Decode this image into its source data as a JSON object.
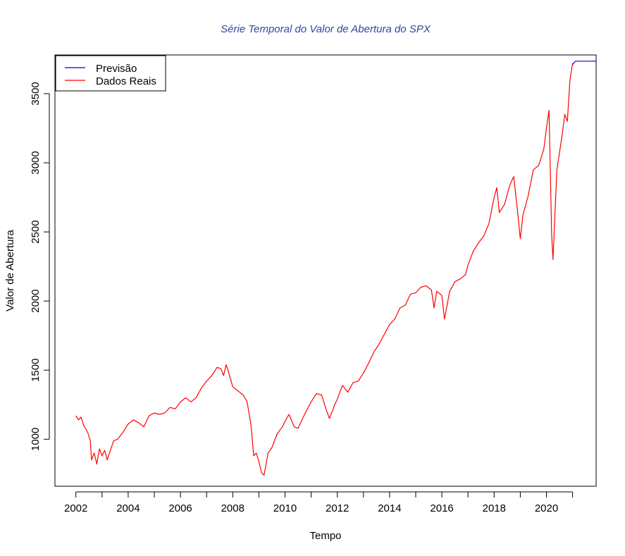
{
  "chart_data": {
    "type": "line",
    "title": "Série Temporal do Valor de Abertura do SPX",
    "xlabel": "Tempo",
    "ylabel": "Valor de Abertura",
    "xlim": [
      2001.2,
      2021.9
    ],
    "ylim": [
      660,
      3780
    ],
    "x_ticks": [
      2002,
      2003,
      2004,
      2005,
      2006,
      2007,
      2008,
      2009,
      2010,
      2011,
      2012,
      2013,
      2014,
      2015,
      2016,
      2017,
      2018,
      2019,
      2020,
      2021
    ],
    "x_tick_labels": [
      "2002",
      "",
      "2004",
      "",
      "2006",
      "",
      "2008",
      "",
      "2010",
      "",
      "2012",
      "",
      "2014",
      "",
      "2016",
      "",
      "2018",
      "",
      "2020",
      ""
    ],
    "y_ticks": [
      1000,
      1500,
      2000,
      2500,
      3000,
      3500
    ],
    "y_tick_labels": [
      "1000",
      "1500",
      "2000",
      "2500",
      "3000",
      "3500"
    ],
    "grid": false,
    "legend_position": "top-left",
    "series": [
      {
        "name": "Previsão",
        "color": "#0000cd",
        "x": [
          2021.0,
          2021.1,
          2021.9
        ],
        "y": [
          3710,
          3735,
          3735
        ]
      },
      {
        "name": "Dados Reais",
        "color": "#ff0000",
        "x": [
          2002.0,
          2002.1,
          2002.2,
          2002.3,
          2002.45,
          2002.55,
          2002.6,
          2002.7,
          2002.8,
          2002.9,
          2003.0,
          2003.1,
          2003.2,
          2003.3,
          2003.45,
          2003.6,
          2003.8,
          2004.0,
          2004.2,
          2004.4,
          2004.6,
          2004.8,
          2005.0,
          2005.2,
          2005.4,
          2005.6,
          2005.8,
          2006.0,
          2006.2,
          2006.4,
          2006.6,
          2006.8,
          2007.0,
          2007.2,
          2007.4,
          2007.55,
          2007.65,
          2007.75,
          2007.85,
          2008.0,
          2008.2,
          2008.4,
          2008.55,
          2008.7,
          2008.8,
          2008.9,
          2009.0,
          2009.1,
          2009.2,
          2009.35,
          2009.5,
          2009.7,
          2009.9,
          2010.0,
          2010.15,
          2010.35,
          2010.5,
          2010.65,
          2010.8,
          2011.0,
          2011.2,
          2011.4,
          2011.6,
          2011.7,
          2011.9,
          2012.0,
          2012.2,
          2012.4,
          2012.6,
          2012.8,
          2013.0,
          2013.2,
          2013.4,
          2013.6,
          2013.8,
          2014.0,
          2014.2,
          2014.4,
          2014.6,
          2014.8,
          2015.0,
          2015.2,
          2015.4,
          2015.6,
          2015.7,
          2015.8,
          2016.0,
          2016.1,
          2016.3,
          2016.5,
          2016.7,
          2016.9,
          2017.0,
          2017.2,
          2017.4,
          2017.6,
          2017.8,
          2018.0,
          2018.1,
          2018.2,
          2018.4,
          2018.6,
          2018.75,
          2018.9,
          2019.0,
          2019.1,
          2019.3,
          2019.5,
          2019.7,
          2019.9,
          2020.0,
          2020.1,
          2020.2,
          2020.25,
          2020.4,
          2020.6,
          2020.7,
          2020.8,
          2020.9,
          2021.0
        ],
        "y": [
          1170,
          1140,
          1160,
          1100,
          1050,
          990,
          850,
          900,
          820,
          930,
          880,
          920,
          850,
          910,
          990,
          1000,
          1050,
          1110,
          1140,
          1120,
          1090,
          1170,
          1190,
          1180,
          1190,
          1230,
          1220,
          1270,
          1300,
          1270,
          1300,
          1370,
          1420,
          1460,
          1520,
          1510,
          1460,
          1540,
          1480,
          1380,
          1350,
          1320,
          1270,
          1100,
          880,
          900,
          840,
          760,
          740,
          900,
          940,
          1040,
          1090,
          1130,
          1180,
          1090,
          1080,
          1140,
          1200,
          1270,
          1330,
          1320,
          1200,
          1150,
          1250,
          1290,
          1390,
          1340,
          1410,
          1420,
          1480,
          1550,
          1630,
          1690,
          1760,
          1830,
          1870,
          1950,
          1970,
          2050,
          2060,
          2100,
          2110,
          2080,
          1950,
          2070,
          2040,
          1870,
          2070,
          2140,
          2160,
          2190,
          2260,
          2360,
          2420,
          2470,
          2560,
          2750,
          2820,
          2640,
          2700,
          2840,
          2900,
          2640,
          2450,
          2620,
          2760,
          2950,
          2980,
          3100,
          3250,
          3380,
          2480,
          2300,
          2950,
          3200,
          3350,
          3300,
          3600,
          3720
        ]
      }
    ]
  }
}
